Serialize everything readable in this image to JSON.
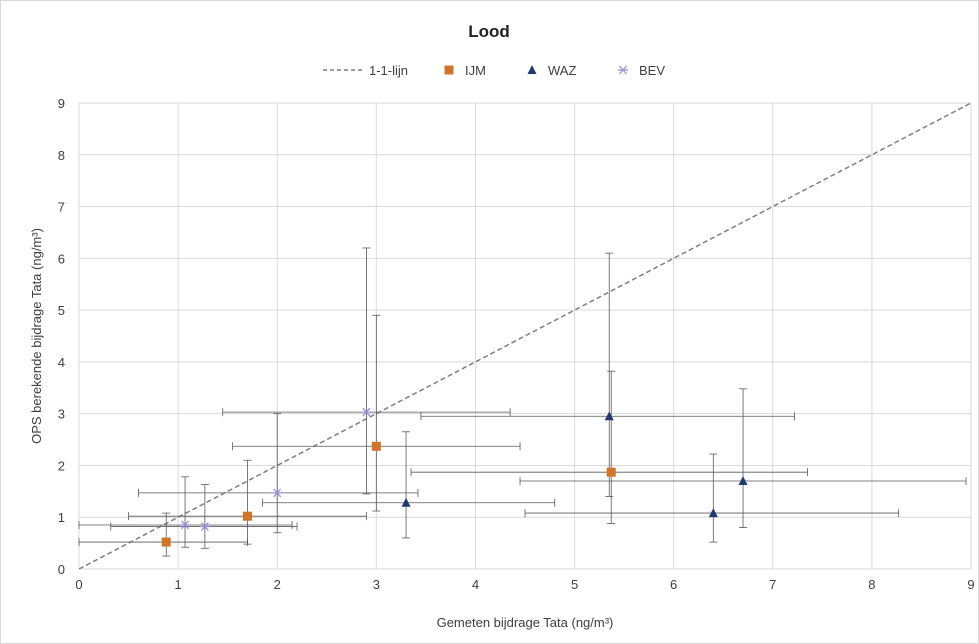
{
  "chart_data": {
    "type": "scatter",
    "title": "Lood",
    "xlabel": "Gemeten bijdrage Tata (ng/m³)",
    "ylabel": "OPS berekende bijdrage Tata (ng/m³)",
    "xlim": [
      0,
      9
    ],
    "ylim": [
      0,
      9
    ],
    "xticks": [
      "0",
      "1",
      "2",
      "3",
      "4",
      "5",
      "6",
      "7",
      "8",
      "9"
    ],
    "yticks": [
      "0",
      "1",
      "2",
      "3",
      "4",
      "5",
      "6",
      "7",
      "8",
      "9"
    ],
    "grid": true,
    "legend_position": "top",
    "reference_line": {
      "name": "1-1-lijn",
      "x": [
        0,
        9
      ],
      "y": [
        0,
        9
      ],
      "color": "#7f7f7f"
    },
    "series": [
      {
        "name": "IJM",
        "marker": "square",
        "color": "#d2732a",
        "points": [
          {
            "x": 0.88,
            "y": 0.52,
            "xerr": [
              0.0,
              1.7
            ],
            "yerr": [
              0.25,
              1.08
            ]
          },
          {
            "x": 1.7,
            "y": 1.02,
            "xerr": [
              0.5,
              2.9
            ],
            "yerr": [
              0.48,
              2.1
            ]
          },
          {
            "x": 3.0,
            "y": 2.37,
            "xerr": [
              1.55,
              4.45
            ],
            "yerr": [
              1.12,
              4.9
            ]
          },
          {
            "x": 5.37,
            "y": 1.87,
            "xerr": [
              3.35,
              7.35
            ],
            "yerr": [
              0.88,
              3.82
            ]
          }
        ]
      },
      {
        "name": "WAZ",
        "marker": "triangle",
        "color": "#1f3a73",
        "points": [
          {
            "x": 3.3,
            "y": 1.28,
            "xerr": [
              1.85,
              4.8
            ],
            "yerr": [
              0.6,
              2.65
            ]
          },
          {
            "x": 5.35,
            "y": 2.95,
            "xerr": [
              3.45,
              7.22
            ],
            "yerr": [
              1.4,
              6.1
            ]
          },
          {
            "x": 6.4,
            "y": 1.08,
            "xerr": [
              4.5,
              8.27
            ],
            "yerr": [
              0.52,
              2.22
            ]
          },
          {
            "x": 6.7,
            "y": 1.7,
            "xerr": [
              4.45,
              8.95
            ],
            "yerr": [
              0.8,
              3.48
            ]
          }
        ]
      },
      {
        "name": "BEV",
        "marker": "star",
        "color": "#9b8fd6",
        "points": [
          {
            "x": 1.07,
            "y": 0.85,
            "xerr": [
              0.0,
              2.15
            ],
            "yerr": [
              0.42,
              1.78
            ]
          },
          {
            "x": 1.27,
            "y": 0.82,
            "xerr": [
              0.32,
              2.2
            ],
            "yerr": [
              0.4,
              1.63
            ]
          },
          {
            "x": 2.0,
            "y": 1.47,
            "xerr": [
              0.6,
              3.42
            ],
            "yerr": [
              0.7,
              3.0
            ]
          },
          {
            "x": 2.9,
            "y": 3.03,
            "xerr": [
              1.45,
              4.35
            ],
            "yerr": [
              1.45,
              6.2
            ]
          }
        ]
      }
    ]
  }
}
